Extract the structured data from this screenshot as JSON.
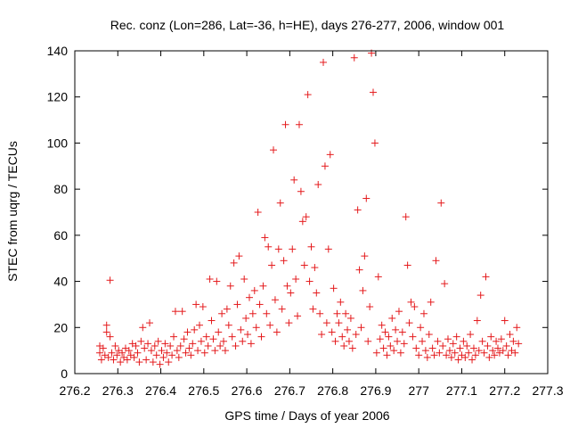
{
  "chart_data": {
    "type": "scatter",
    "title": "Rec. conz (Lon=286, Lat=-36, h=HE), days 276-277, 2006, window 001",
    "xlabel": "GPS time / Days of year 2006",
    "ylabel": "STEC from uqrg / TECUs",
    "xlim": [
      276.2,
      277.3
    ],
    "ylim": [
      0,
      140
    ],
    "grid": false,
    "legend": "none",
    "marker": "plus",
    "color": "#e41a1c",
    "x_ticks": [
      "276.2",
      "276.3",
      "276.4",
      "276.5",
      "276.6",
      "276.7",
      "276.8",
      "276.9",
      "277",
      "277.1",
      "277.2",
      "277.3"
    ],
    "y_ticks": [
      "0",
      "20",
      "40",
      "60",
      "80",
      "100",
      "120",
      "140"
    ],
    "series": [
      {
        "points": [
          [
            276.258,
            12
          ],
          [
            276.258,
            9
          ],
          [
            276.262,
            6
          ],
          [
            276.266,
            11
          ],
          [
            276.27,
            8
          ],
          [
            276.274,
            21
          ],
          [
            276.274,
            18
          ],
          [
            276.278,
            7
          ],
          [
            276.282,
            16
          ],
          [
            276.282,
            40.5
          ],
          [
            276.286,
            9
          ],
          [
            276.29,
            6
          ],
          [
            276.294,
            12
          ],
          [
            276.298,
            8
          ],
          [
            276.302,
            10
          ],
          [
            276.306,
            5
          ],
          [
            276.31,
            9
          ],
          [
            276.314,
            7
          ],
          [
            276.318,
            11
          ],
          [
            276.322,
            6
          ],
          [
            276.326,
            10
          ],
          [
            276.33,
            8
          ],
          [
            276.334,
            13
          ],
          [
            276.338,
            7
          ],
          [
            276.342,
            12
          ],
          [
            276.346,
            9
          ],
          [
            276.35,
            5
          ],
          [
            276.354,
            14
          ],
          [
            276.358,
            20
          ],
          [
            276.362,
            11
          ],
          [
            276.366,
            6
          ],
          [
            276.37,
            13
          ],
          [
            276.374,
            22
          ],
          [
            276.378,
            10
          ],
          [
            276.382,
            5
          ],
          [
            276.386,
            12
          ],
          [
            276.39,
            8
          ],
          [
            276.394,
            14
          ],
          [
            276.398,
            4
          ],
          [
            276.402,
            10
          ],
          [
            276.406,
            7
          ],
          [
            276.41,
            13
          ],
          [
            276.414,
            9
          ],
          [
            276.418,
            5
          ],
          [
            276.422,
            12
          ],
          [
            276.426,
            8
          ],
          [
            276.43,
            16
          ],
          [
            276.434,
            27
          ],
          [
            276.438,
            10
          ],
          [
            276.442,
            7
          ],
          [
            276.446,
            12
          ],
          [
            276.45,
            27
          ],
          [
            276.454,
            15
          ],
          [
            276.458,
            9
          ],
          [
            276.462,
            18
          ],
          [
            276.466,
            11
          ],
          [
            276.47,
            8
          ],
          [
            276.474,
            13
          ],
          [
            276.478,
            19
          ],
          [
            276.482,
            30
          ],
          [
            276.486,
            10
          ],
          [
            276.49,
            21
          ],
          [
            276.494,
            14
          ],
          [
            276.498,
            29
          ],
          [
            276.502,
            9
          ],
          [
            276.506,
            16
          ],
          [
            276.51,
            12
          ],
          [
            276.514,
            41
          ],
          [
            276.518,
            23
          ],
          [
            276.522,
            15
          ],
          [
            276.526,
            10
          ],
          [
            276.53,
            40
          ],
          [
            276.534,
            18
          ],
          [
            276.538,
            12
          ],
          [
            276.542,
            26
          ],
          [
            276.546,
            14
          ],
          [
            276.55,
            10
          ],
          [
            276.554,
            28
          ],
          [
            276.558,
            21
          ],
          [
            276.562,
            38
          ],
          [
            276.566,
            16
          ],
          [
            276.57,
            48
          ],
          [
            276.574,
            12
          ],
          [
            276.578,
            30
          ],
          [
            276.582,
            51
          ],
          [
            276.586,
            19
          ],
          [
            276.59,
            14
          ],
          [
            276.594,
            41
          ],
          [
            276.598,
            24
          ],
          [
            276.602,
            17
          ],
          [
            276.606,
            33
          ],
          [
            276.61,
            13
          ],
          [
            276.614,
            26
          ],
          [
            276.618,
            36
          ],
          [
            276.622,
            20
          ],
          [
            276.626,
            70
          ],
          [
            276.63,
            30
          ],
          [
            276.634,
            16
          ],
          [
            276.638,
            38
          ],
          [
            276.642,
            59
          ],
          [
            276.646,
            26
          ],
          [
            276.65,
            55
          ],
          [
            276.654,
            21
          ],
          [
            276.658,
            47
          ],
          [
            276.662,
            97
          ],
          [
            276.666,
            32
          ],
          [
            276.67,
            18
          ],
          [
            276.674,
            54
          ],
          [
            276.678,
            74
          ],
          [
            276.682,
            28
          ],
          [
            276.686,
            49
          ],
          [
            276.69,
            108
          ],
          [
            276.694,
            38
          ],
          [
            276.698,
            22
          ],
          [
            276.702,
            35
          ],
          [
            276.706,
            54
          ],
          [
            276.71,
            84
          ],
          [
            276.714,
            41
          ],
          [
            276.718,
            25
          ],
          [
            276.722,
            108
          ],
          [
            276.726,
            79
          ],
          [
            276.73,
            66
          ],
          [
            276.734,
            47
          ],
          [
            276.738,
            68
          ],
          [
            276.742,
            121
          ],
          [
            276.746,
            40
          ],
          [
            276.75,
            55
          ],
          [
            276.754,
            28
          ],
          [
            276.758,
            46
          ],
          [
            276.762,
            35
          ],
          [
            276.766,
            82
          ],
          [
            276.77,
            26
          ],
          [
            276.774,
            17
          ],
          [
            276.778,
            135
          ],
          [
            276.782,
            90
          ],
          [
            276.786,
            22
          ],
          [
            276.79,
            54
          ],
          [
            276.794,
            95
          ],
          [
            276.798,
            18
          ],
          [
            276.802,
            37
          ],
          [
            276.806,
            14
          ],
          [
            276.81,
            26
          ],
          [
            276.814,
            22
          ],
          [
            276.818,
            31
          ],
          [
            276.822,
            16
          ],
          [
            276.826,
            12
          ],
          [
            276.83,
            26
          ],
          [
            276.834,
            19
          ],
          [
            276.838,
            14
          ],
          [
            276.842,
            24
          ],
          [
            276.846,
            11
          ],
          [
            276.85,
            137
          ],
          [
            276.854,
            17
          ],
          [
            276.858,
            71
          ],
          [
            276.862,
            45
          ],
          [
            276.866,
            20
          ],
          [
            276.87,
            36
          ],
          [
            276.874,
            51
          ],
          [
            276.878,
            76
          ],
          [
            276.882,
            14
          ],
          [
            276.886,
            29
          ],
          [
            276.89,
            139
          ],
          [
            276.894,
            122
          ],
          [
            276.898,
            100
          ],
          [
            276.902,
            9
          ],
          [
            276.906,
            42
          ],
          [
            276.91,
            15
          ],
          [
            276.914,
            21
          ],
          [
            276.918,
            11
          ],
          [
            276.922,
            18
          ],
          [
            276.926,
            8
          ],
          [
            276.93,
            16
          ],
          [
            276.934,
            12
          ],
          [
            276.938,
            24
          ],
          [
            276.942,
            10
          ],
          [
            276.946,
            19
          ],
          [
            276.95,
            14
          ],
          [
            276.954,
            27
          ],
          [
            276.958,
            9
          ],
          [
            276.962,
            18
          ],
          [
            276.966,
            13
          ],
          [
            276.97,
            68
          ],
          [
            276.974,
            47
          ],
          [
            276.978,
            22
          ],
          [
            276.982,
            31
          ],
          [
            276.986,
            16
          ],
          [
            276.99,
            29
          ],
          [
            276.994,
            11
          ],
          [
            277.0,
            8
          ],
          [
            277.004,
            20
          ],
          [
            277.008,
            14
          ],
          [
            277.012,
            26
          ],
          [
            277.016,
            10
          ],
          [
            277.02,
            7
          ],
          [
            277.024,
            17
          ],
          [
            277.028,
            31
          ],
          [
            277.032,
            11
          ],
          [
            277.036,
            8
          ],
          [
            277.04,
            49
          ],
          [
            277.044,
            14
          ],
          [
            277.048,
            9
          ],
          [
            277.052,
            74
          ],
          [
            277.056,
            12
          ],
          [
            277.06,
            39
          ],
          [
            277.064,
            8
          ],
          [
            277.068,
            15
          ],
          [
            277.072,
            10
          ],
          [
            277.076,
            7
          ],
          [
            277.08,
            13
          ],
          [
            277.084,
            9
          ],
          [
            277.088,
            16
          ],
          [
            277.092,
            6
          ],
          [
            277.096,
            11
          ],
          [
            277.1,
            8
          ],
          [
            277.104,
            14
          ],
          [
            277.108,
            7
          ],
          [
            277.112,
            12
          ],
          [
            277.116,
            9
          ],
          [
            277.12,
            17
          ],
          [
            277.124,
            6
          ],
          [
            277.128,
            11
          ],
          [
            277.132,
            8
          ],
          [
            277.136,
            23
          ],
          [
            277.14,
            10
          ],
          [
            277.144,
            34
          ],
          [
            277.148,
            14
          ],
          [
            277.152,
            9
          ],
          [
            277.156,
            42
          ],
          [
            277.16,
            12
          ],
          [
            277.164,
            7
          ],
          [
            277.168,
            16
          ],
          [
            277.172,
            10
          ],
          [
            277.176,
            8
          ],
          [
            277.18,
            14
          ],
          [
            277.184,
            11
          ],
          [
            277.188,
            9
          ],
          [
            277.192,
            15
          ],
          [
            277.196,
            10
          ],
          [
            277.2,
            23
          ],
          [
            277.204,
            12
          ],
          [
            277.208,
            8
          ],
          [
            277.212,
            17
          ],
          [
            277.216,
            10
          ],
          [
            277.22,
            14
          ],
          [
            277.224,
            9
          ],
          [
            277.228,
            20
          ],
          [
            277.232,
            13
          ]
        ]
      }
    ]
  }
}
